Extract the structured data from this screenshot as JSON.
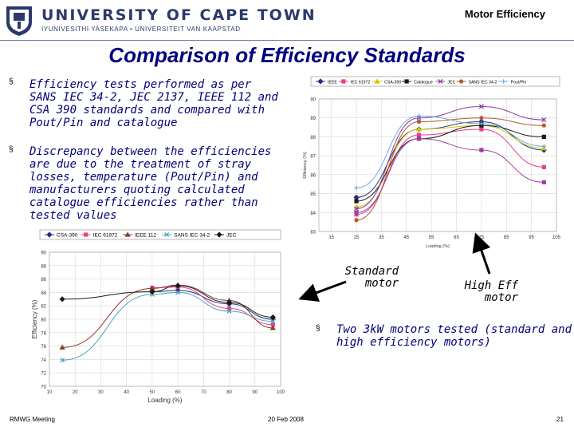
{
  "header": {
    "university_name": "UNIVERSITY OF CAPE TOWN",
    "university_subtitle": "IYUNIVESITHI YASEKAPA • UNIVERSITEIT VAN KAAPSTAD",
    "deck_title": "Motor Efficiency"
  },
  "slide": {
    "title": "Comparison of Efficiency Standards",
    "bullets": [
      {
        "marker": "§",
        "text": "Efficiency tests performed as per SANS IEC 34-2, JEC 2137, IEEE 112 and CSA 390 standards and compared with Pout/Pin and catalogue"
      },
      {
        "marker": "§",
        "text": "Discrepancy between the efficiencies are due to the treatment of stray losses, temperature (Pout/Pin) and manufacturers quoting calculated catalogue efficiencies rather than tested values"
      },
      {
        "marker": "§",
        "text": "Two 3kW motors tested (standard and high efficiency motors)"
      }
    ],
    "label_standard_motor": "Standard motor",
    "label_high_eff_motor": "High Eff motor"
  },
  "colors": {
    "title": "#000080",
    "bullet_text": "#00007a",
    "university": "#2b3a6b",
    "arrow": "#000000"
  },
  "chart_data": [
    {
      "type": "line",
      "xlabel": "Loading (%)",
      "ylabel": "Efficiency (%)",
      "xlim": [
        10,
        105
      ],
      "ylim": [
        83,
        90
      ],
      "x_ticks": [
        "15",
        "25",
        "35",
        "45",
        "55",
        "65",
        "75",
        "85",
        "95",
        "105"
      ],
      "y_ticks": [
        "83",
        "84",
        "85",
        "86",
        "87",
        "88",
        "89",
        "90"
      ],
      "grid": true,
      "legend_position": "top",
      "x": [
        25,
        50,
        75,
        100
      ],
      "series": [
        {
          "name": "IEEE",
          "color": "#1f2e7a",
          "marker": "diamond",
          "values": [
            84.8,
            88.4,
            88.8,
            87.3
          ]
        },
        {
          "name": "IEC 61972",
          "color": "#e83e8c",
          "marker": "square",
          "values": [
            83.9,
            88.1,
            88.4,
            86.4
          ]
        },
        {
          "name": "CSA-390",
          "color": "#d4c800",
          "marker": "triangle",
          "values": [
            84.3,
            88.4,
            88.6,
            87.4
          ]
        },
        {
          "name": "Catalogue",
          "color": "#1a1a1a",
          "marker": "square",
          "values": [
            84.6,
            87.9,
            88.6,
            88.0
          ]
        },
        {
          "name": "JEC",
          "color": "#8a3fa0",
          "marker": "x",
          "values": [
            84.2,
            89.0,
            89.6,
            88.9
          ]
        },
        {
          "name": "SANS IEC 34-2",
          "color": "#b05a2a",
          "marker": "circle",
          "values": [
            83.6,
            88.8,
            89.0,
            88.6
          ]
        },
        {
          "name": "Pout/Pin",
          "color": "#6fa8dc",
          "marker": "plus",
          "values": [
            85.3,
            89.1,
            88.7,
            87.5
          ]
        },
        {
          "name": "",
          "color": "#9b3fa0",
          "marker": "square",
          "values": [
            84.0,
            87.9,
            87.3,
            85.6
          ]
        }
      ]
    },
    {
      "type": "line",
      "xlabel": "Loading (%)",
      "ylabel": "Efficiency (%)",
      "xlim": [
        10,
        100
      ],
      "ylim": [
        70,
        90
      ],
      "x_ticks": [
        "10",
        "20",
        "30",
        "40",
        "50",
        "60",
        "70",
        "80",
        "90",
        "100"
      ],
      "y_ticks": [
        "70",
        "72",
        "74",
        "76",
        "78",
        "80",
        "82",
        "84",
        "86",
        "88",
        "90"
      ],
      "grid": true,
      "legend_position": "top",
      "x": [
        15,
        50,
        60,
        80,
        97
      ],
      "series": [
        {
          "name": "CSA-390",
          "color": "#1f2e7a",
          "marker": "diamond",
          "values": [
            null,
            84.1,
            84.3,
            82.3,
            80.0
          ]
        },
        {
          "name": "IEC 61972",
          "color": "#e83e8c",
          "marker": "square",
          "values": [
            null,
            84.7,
            84.8,
            81.6,
            79.2
          ]
        },
        {
          "name": "IEEE 112",
          "color": "#8b3a2a",
          "marker": "triangle",
          "values": [
            75.8,
            84.6,
            85.1,
            82.8,
            78.7
          ]
        },
        {
          "name": "SANS IEC 34-2",
          "color": "#4fa3b8",
          "marker": "x",
          "values": [
            73.9,
            83.7,
            84.0,
            81.2,
            79.7
          ]
        },
        {
          "name": "JEC",
          "color": "#1a1a1a",
          "marker": "diamond",
          "values": [
            83.0,
            84.1,
            85.0,
            82.5,
            80.3
          ]
        }
      ]
    }
  ],
  "footer": {
    "left": "RMWG Meeting",
    "center": "20 Feb 2008",
    "page": "21"
  }
}
